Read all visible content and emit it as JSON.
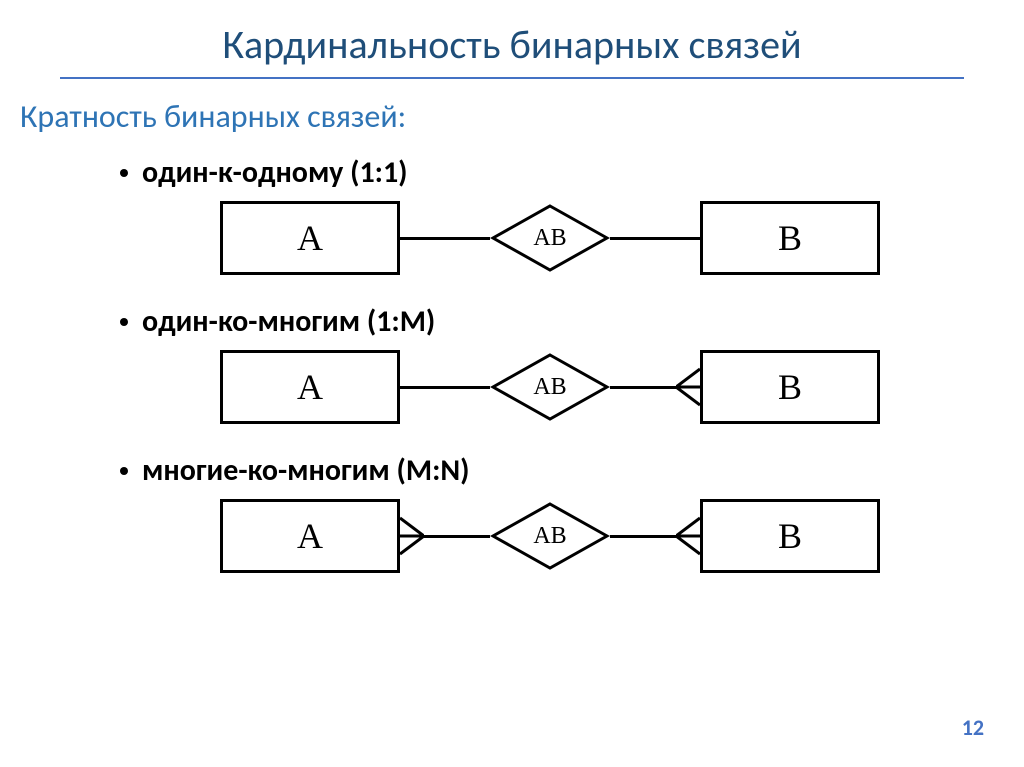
{
  "title": "Кардинальность бинарных связей",
  "subtitle": "Кратность бинарных связей:",
  "colors": {
    "title_color": "#1f4e79",
    "underline_color": "#4472c4",
    "subtitle_color": "#2e74b5",
    "text_color": "#000000",
    "pagenum_color": "#4472c4",
    "line_color": "#000000",
    "background": "#ffffff"
  },
  "fonts": {
    "title_size": 40,
    "subtitle_size": 32,
    "bullet_size": 30,
    "entity_size": 36,
    "diamond_size": 24,
    "pagenum_size": 22
  },
  "items": [
    {
      "label": "один-к-одному (1:1)",
      "diagram": {
        "left_entity": "A",
        "relation": "AB",
        "right_entity": "B",
        "left_crow": false,
        "right_crow": false
      }
    },
    {
      "label": "один-ко-многим (1:М)",
      "diagram": {
        "left_entity": "A",
        "relation": "AB",
        "right_entity": "B",
        "left_crow": false,
        "right_crow": true
      }
    },
    {
      "label": "многие-ко-многим (M:N)",
      "diagram": {
        "left_entity": "A",
        "relation": "AB",
        "right_entity": "B",
        "left_crow": true,
        "right_crow": true
      }
    }
  ],
  "layout": {
    "entity_w": 180,
    "entity_h": 74,
    "diamond_w": 120,
    "diamond_h": 70,
    "conn_len": 90,
    "crow_len": 24,
    "stroke_w": 3
  },
  "page_number": "12"
}
